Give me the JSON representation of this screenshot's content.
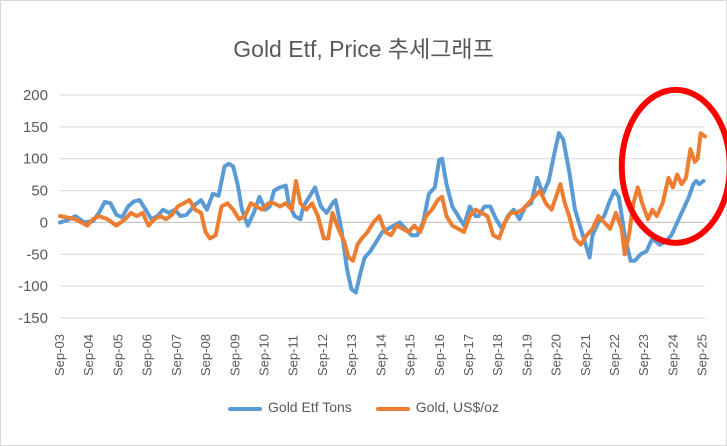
{
  "chart_data": {
    "type": "line",
    "title": "Gold Etf, Price 추세그래프",
    "xlabel": "",
    "ylabel": "",
    "ylim": [
      -150,
      200
    ],
    "yticks": [
      -150,
      -100,
      -50,
      0,
      50,
      100,
      150,
      200
    ],
    "ytick_labels": [
      "-150",
      "-100",
      "-50",
      "0",
      "50",
      "100",
      "150",
      "200"
    ],
    "x_range": [
      2003.67,
      2025.75
    ],
    "categories": [
      "Sep-03",
      "Sep-04",
      "Sep-05",
      "Sep-06",
      "Sep-07",
      "Sep-08",
      "Sep-09",
      "Sep-10",
      "Sep-11",
      "Sep-12",
      "Sep-13",
      "Sep-14",
      "Sep-15",
      "Sep-16",
      "Sep-17",
      "Sep-18",
      "Sep-19",
      "Sep-20",
      "Sep-21",
      "Sep-22",
      "Sep-23",
      "Sep-24",
      "Sep-25"
    ],
    "legend_position": "bottom",
    "grid": true,
    "series": [
      {
        "name": "Gold Etf Tons",
        "color": "#5b9bd5",
        "points": [
          [
            2003.67,
            0
          ],
          [
            2003.9,
            3
          ],
          [
            2004.2,
            10
          ],
          [
            2004.5,
            0
          ],
          [
            2004.8,
            2
          ],
          [
            2005.0,
            15
          ],
          [
            2005.2,
            32
          ],
          [
            2005.4,
            30
          ],
          [
            2005.6,
            12
          ],
          [
            2005.8,
            8
          ],
          [
            2006.0,
            25
          ],
          [
            2006.2,
            33
          ],
          [
            2006.4,
            35
          ],
          [
            2006.6,
            20
          ],
          [
            2006.8,
            5
          ],
          [
            2007.0,
            10
          ],
          [
            2007.2,
            20
          ],
          [
            2007.4,
            15
          ],
          [
            2007.6,
            20
          ],
          [
            2007.8,
            10
          ],
          [
            2008.0,
            12
          ],
          [
            2008.3,
            28
          ],
          [
            2008.5,
            35
          ],
          [
            2008.7,
            20
          ],
          [
            2008.9,
            45
          ],
          [
            2009.1,
            42
          ],
          [
            2009.3,
            88
          ],
          [
            2009.45,
            92
          ],
          [
            2009.6,
            88
          ],
          [
            2009.75,
            60
          ],
          [
            2009.9,
            20
          ],
          [
            2010.1,
            -5
          ],
          [
            2010.3,
            15
          ],
          [
            2010.5,
            40
          ],
          [
            2010.7,
            20
          ],
          [
            2010.85,
            25
          ],
          [
            2011.0,
            50
          ],
          [
            2011.2,
            55
          ],
          [
            2011.4,
            58
          ],
          [
            2011.5,
            30
          ],
          [
            2011.7,
            10
          ],
          [
            2011.9,
            5
          ],
          [
            2012.0,
            25
          ],
          [
            2012.2,
            40
          ],
          [
            2012.4,
            55
          ],
          [
            2012.6,
            25
          ],
          [
            2012.8,
            15
          ],
          [
            2013.0,
            30
          ],
          [
            2013.1,
            35
          ],
          [
            2013.3,
            -10
          ],
          [
            2013.5,
            -75
          ],
          [
            2013.65,
            -105
          ],
          [
            2013.8,
            -110
          ],
          [
            2013.95,
            -80
          ],
          [
            2014.1,
            -55
          ],
          [
            2014.3,
            -45
          ],
          [
            2014.5,
            -30
          ],
          [
            2014.7,
            -15
          ],
          [
            2014.9,
            -10
          ],
          [
            2015.1,
            -5
          ],
          [
            2015.3,
            0
          ],
          [
            2015.5,
            -10
          ],
          [
            2015.7,
            -20
          ],
          [
            2015.9,
            -20
          ],
          [
            2016.1,
            0
          ],
          [
            2016.3,
            45
          ],
          [
            2016.5,
            55
          ],
          [
            2016.65,
            98
          ],
          [
            2016.75,
            100
          ],
          [
            2016.9,
            60
          ],
          [
            2017.1,
            25
          ],
          [
            2017.3,
            10
          ],
          [
            2017.5,
            -5
          ],
          [
            2017.7,
            25
          ],
          [
            2017.9,
            10
          ],
          [
            2018.0,
            10
          ],
          [
            2018.2,
            25
          ],
          [
            2018.4,
            25
          ],
          [
            2018.6,
            5
          ],
          [
            2018.8,
            -10
          ],
          [
            2019.0,
            10
          ],
          [
            2019.2,
            20
          ],
          [
            2019.4,
            5
          ],
          [
            2019.6,
            25
          ],
          [
            2019.8,
            30
          ],
          [
            2020.0,
            70
          ],
          [
            2020.2,
            45
          ],
          [
            2020.4,
            65
          ],
          [
            2020.6,
            110
          ],
          [
            2020.75,
            140
          ],
          [
            2020.9,
            130
          ],
          [
            2021.1,
            80
          ],
          [
            2021.3,
            20
          ],
          [
            2021.5,
            -10
          ],
          [
            2021.7,
            -40
          ],
          [
            2021.8,
            -55
          ],
          [
            2021.9,
            -20
          ],
          [
            2022.1,
            0
          ],
          [
            2022.3,
            10
          ],
          [
            2022.5,
            35
          ],
          [
            2022.65,
            50
          ],
          [
            2022.8,
            40
          ],
          [
            2023.0,
            -20
          ],
          [
            2023.2,
            -60
          ],
          [
            2023.35,
            -60
          ],
          [
            2023.55,
            -50
          ],
          [
            2023.75,
            -45
          ],
          [
            2023.95,
            -25
          ],
          [
            2024.2,
            -35
          ],
          [
            2024.4,
            -30
          ],
          [
            2024.6,
            -20
          ],
          [
            2024.8,
            0
          ],
          [
            2025.0,
            20
          ],
          [
            2025.2,
            40
          ],
          [
            2025.35,
            60
          ],
          [
            2025.45,
            65
          ],
          [
            2025.55,
            60
          ],
          [
            2025.7,
            65
          ]
        ]
      },
      {
        "name": "Gold, US$/oz",
        "color": "#ed7d31",
        "points": [
          [
            2003.67,
            10
          ],
          [
            2003.9,
            8
          ],
          [
            2004.2,
            5
          ],
          [
            2004.4,
            0
          ],
          [
            2004.6,
            -5
          ],
          [
            2004.8,
            5
          ],
          [
            2005.0,
            10
          ],
          [
            2005.3,
            5
          ],
          [
            2005.6,
            -5
          ],
          [
            2005.9,
            5
          ],
          [
            2006.1,
            15
          ],
          [
            2006.3,
            10
          ],
          [
            2006.5,
            15
          ],
          [
            2006.7,
            -5
          ],
          [
            2006.9,
            5
          ],
          [
            2007.1,
            10
          ],
          [
            2007.3,
            5
          ],
          [
            2007.5,
            12
          ],
          [
            2007.7,
            25
          ],
          [
            2007.9,
            30
          ],
          [
            2008.1,
            35
          ],
          [
            2008.3,
            20
          ],
          [
            2008.5,
            15
          ],
          [
            2008.65,
            -15
          ],
          [
            2008.8,
            -25
          ],
          [
            2009.0,
            -20
          ],
          [
            2009.2,
            25
          ],
          [
            2009.4,
            30
          ],
          [
            2009.6,
            20
          ],
          [
            2009.8,
            5
          ],
          [
            2010.0,
            10
          ],
          [
            2010.2,
            30
          ],
          [
            2010.4,
            25
          ],
          [
            2010.6,
            20
          ],
          [
            2010.8,
            30
          ],
          [
            2011.0,
            30
          ],
          [
            2011.2,
            25
          ],
          [
            2011.4,
            30
          ],
          [
            2011.6,
            20
          ],
          [
            2011.75,
            65
          ],
          [
            2011.9,
            30
          ],
          [
            2012.1,
            20
          ],
          [
            2012.3,
            30
          ],
          [
            2012.5,
            10
          ],
          [
            2012.7,
            -25
          ],
          [
            2012.85,
            -25
          ],
          [
            2013.0,
            15
          ],
          [
            2013.2,
            -10
          ],
          [
            2013.4,
            -30
          ],
          [
            2013.55,
            -55
          ],
          [
            2013.7,
            -60
          ],
          [
            2013.85,
            -35
          ],
          [
            2014.0,
            -25
          ],
          [
            2014.2,
            -15
          ],
          [
            2014.4,
            0
          ],
          [
            2014.6,
            10
          ],
          [
            2014.8,
            -15
          ],
          [
            2015.0,
            -20
          ],
          [
            2015.2,
            -5
          ],
          [
            2015.4,
            -10
          ],
          [
            2015.6,
            -15
          ],
          [
            2015.8,
            -5
          ],
          [
            2016.0,
            -15
          ],
          [
            2016.2,
            10
          ],
          [
            2016.4,
            20
          ],
          [
            2016.6,
            35
          ],
          [
            2016.75,
            40
          ],
          [
            2016.9,
            10
          ],
          [
            2017.1,
            -5
          ],
          [
            2017.3,
            -10
          ],
          [
            2017.5,
            -15
          ],
          [
            2017.7,
            10
          ],
          [
            2017.9,
            20
          ],
          [
            2018.1,
            15
          ],
          [
            2018.3,
            10
          ],
          [
            2018.5,
            -20
          ],
          [
            2018.7,
            -25
          ],
          [
            2018.9,
            0
          ],
          [
            2019.1,
            15
          ],
          [
            2019.3,
            15
          ],
          [
            2019.5,
            20
          ],
          [
            2019.7,
            30
          ],
          [
            2019.9,
            40
          ],
          [
            2020.1,
            50
          ],
          [
            2020.3,
            30
          ],
          [
            2020.5,
            20
          ],
          [
            2020.65,
            40
          ],
          [
            2020.8,
            60
          ],
          [
            2020.95,
            30
          ],
          [
            2021.1,
            10
          ],
          [
            2021.3,
            -25
          ],
          [
            2021.5,
            -35
          ],
          [
            2021.7,
            -20
          ],
          [
            2021.9,
            -10
          ],
          [
            2022.1,
            10
          ],
          [
            2022.3,
            0
          ],
          [
            2022.5,
            -10
          ],
          [
            2022.7,
            15
          ],
          [
            2022.9,
            -10
          ],
          [
            2023.0,
            -50
          ],
          [
            2023.15,
            -20
          ],
          [
            2023.3,
            30
          ],
          [
            2023.45,
            55
          ],
          [
            2023.6,
            30
          ],
          [
            2023.8,
            5
          ],
          [
            2023.95,
            20
          ],
          [
            2024.1,
            10
          ],
          [
            2024.3,
            30
          ],
          [
            2024.5,
            70
          ],
          [
            2024.65,
            55
          ],
          [
            2024.8,
            75
          ],
          [
            2024.95,
            60
          ],
          [
            2025.1,
            70
          ],
          [
            2025.25,
            115
          ],
          [
            2025.4,
            95
          ],
          [
            2025.5,
            100
          ],
          [
            2025.6,
            140
          ],
          [
            2025.75,
            135
          ]
        ]
      }
    ],
    "annotations": [
      {
        "type": "ellipse",
        "color": "#ff0000",
        "x_center": 2024.75,
        "y_center": 88,
        "x_radius": 1.85,
        "y_radius": 120
      }
    ]
  }
}
